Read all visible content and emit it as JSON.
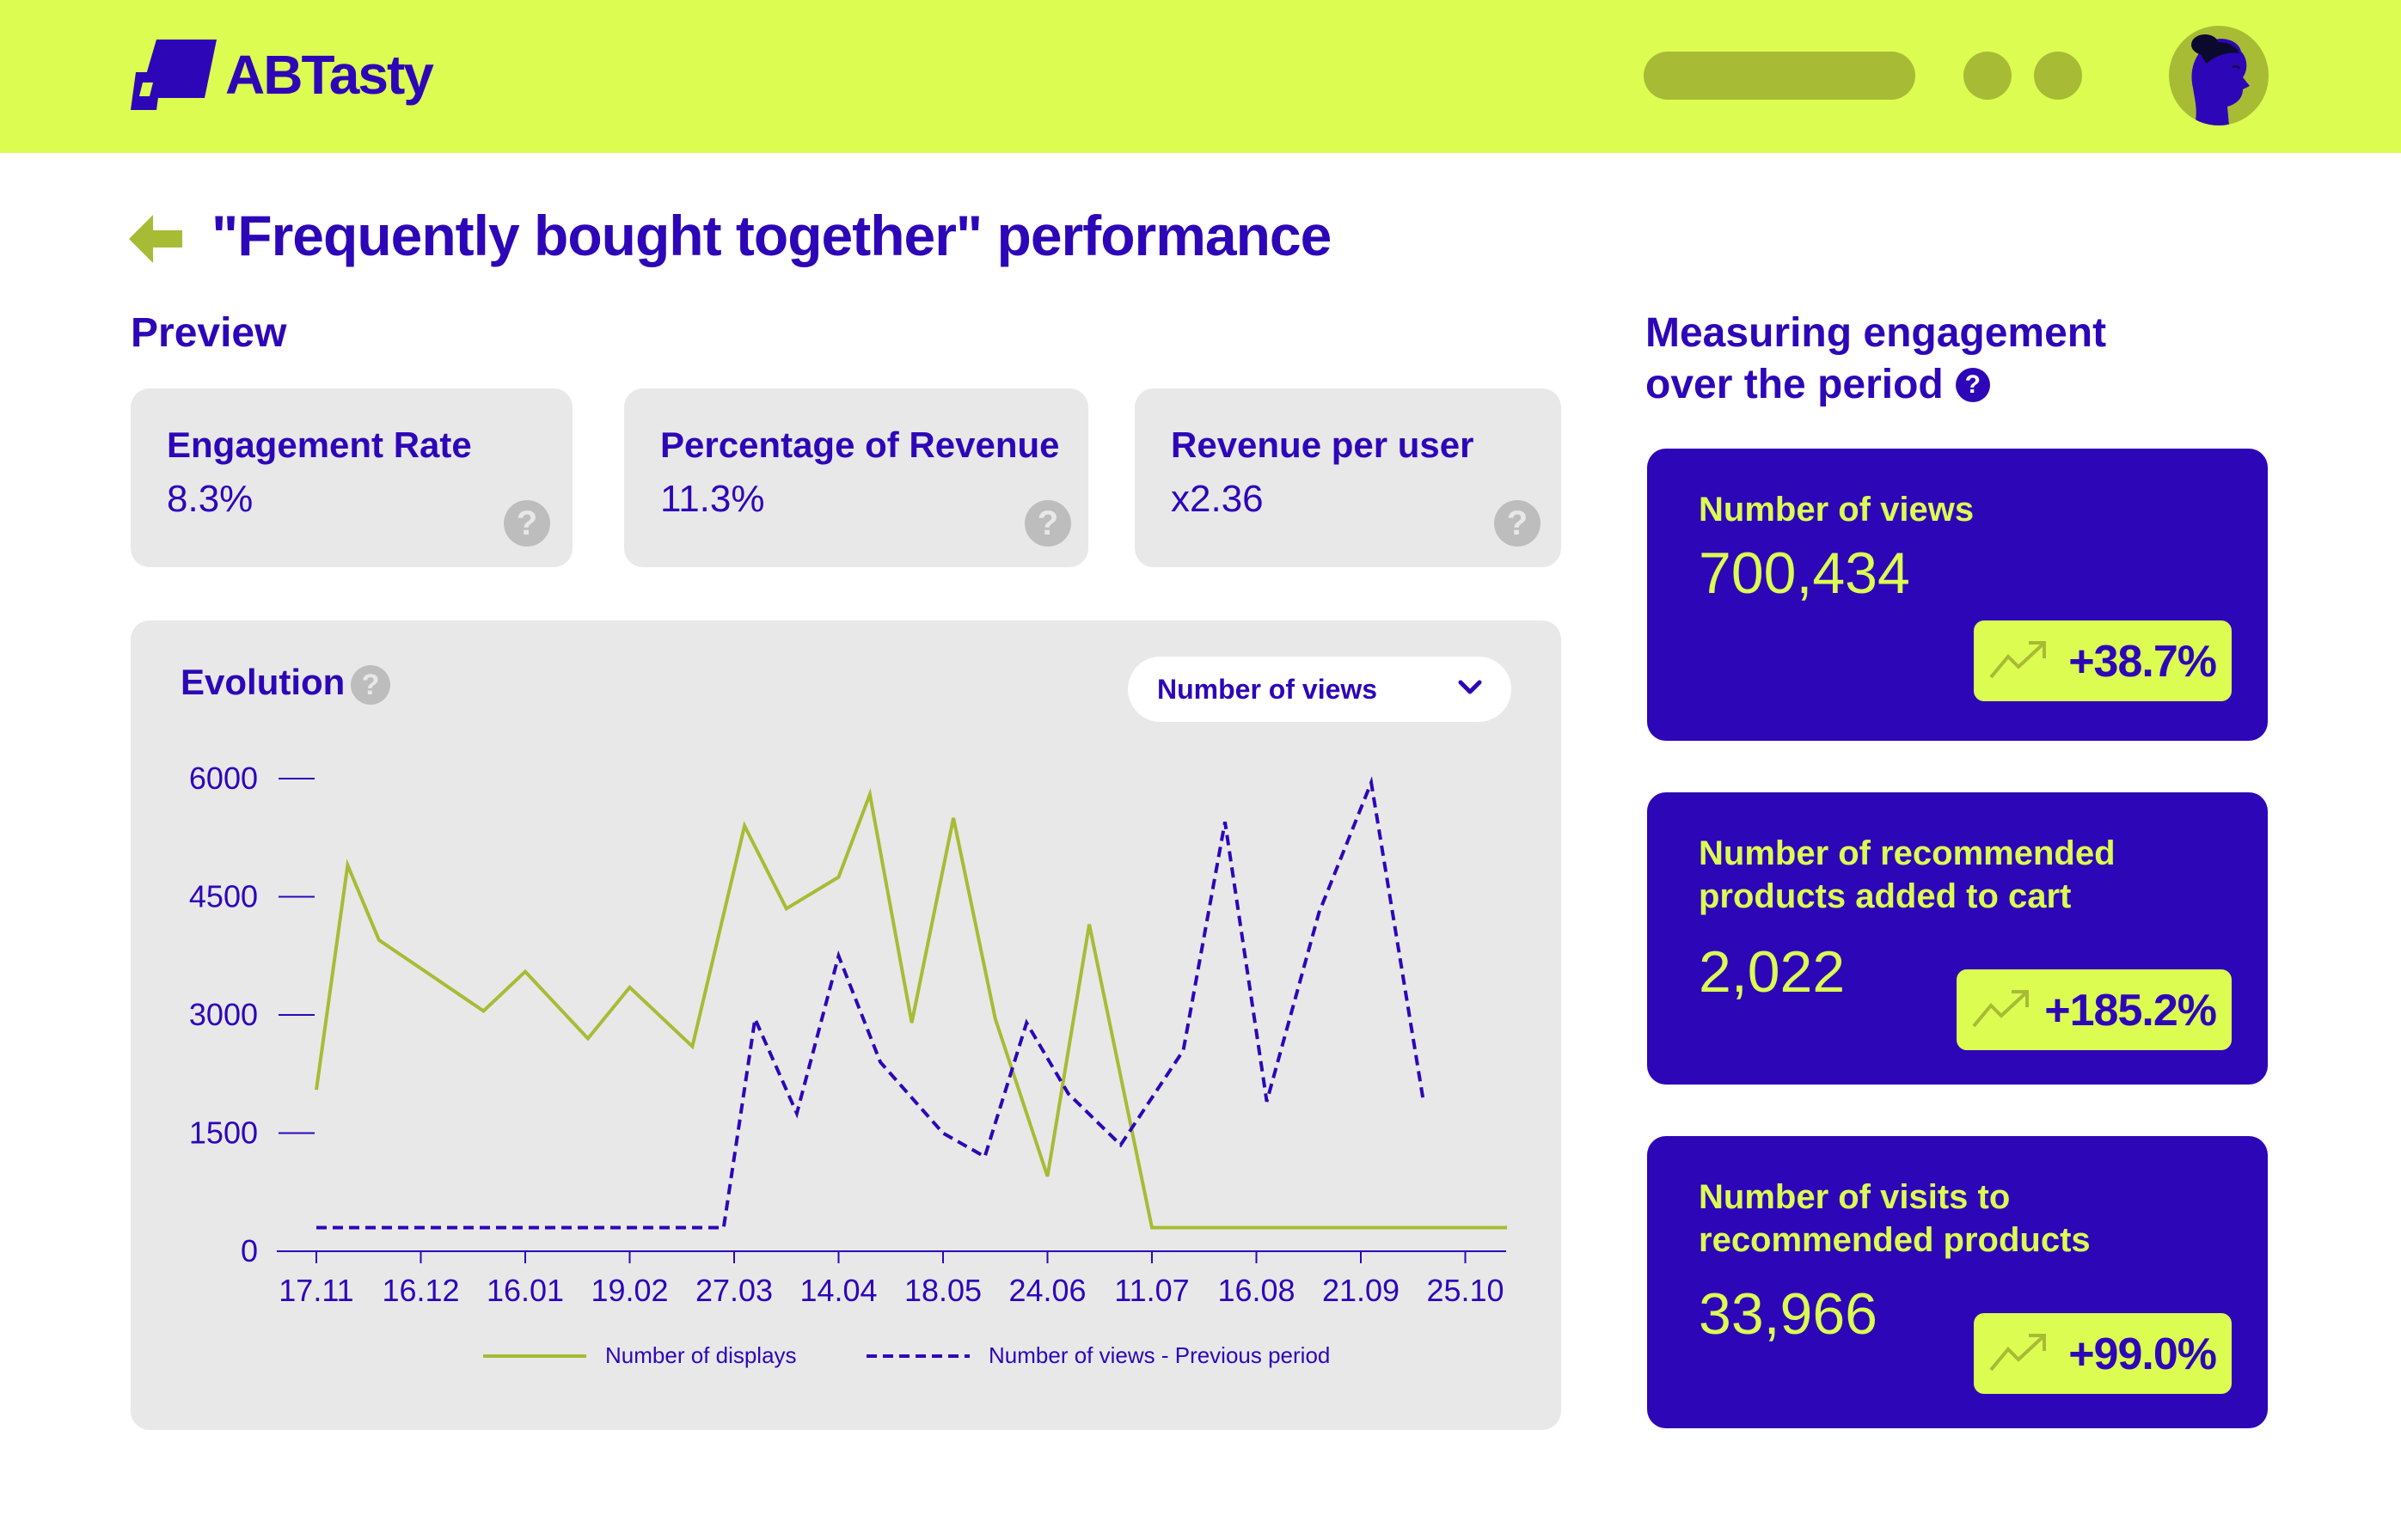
{
  "header": {
    "brand": "ABTasty",
    "colors": {
      "background": "#dcfc52",
      "accent": "#2d06b8",
      "muted": "#a8bb35"
    },
    "icons": [
      "abtasty-logo-icon",
      "user-avatar-icon"
    ]
  },
  "page": {
    "title": "\"Frequently bought together\" performance",
    "back_icon": "arrow-left-icon"
  },
  "preview": {
    "title": "Preview",
    "kpis": [
      {
        "label": "Engagement Rate",
        "value": "8.3%"
      },
      {
        "label": "Percentage of Revenue",
        "value": "11.3%"
      },
      {
        "label": "Revenue per user",
        "value": "x2.36"
      }
    ],
    "help_icon": "?"
  },
  "evolution": {
    "title": "Evolution",
    "help_icon": "?",
    "metric_select": {
      "selected": "Number of views",
      "icon": "chevron-down-icon"
    }
  },
  "chart_data": {
    "type": "line",
    "title": "",
    "xlabel": "",
    "ylabel": "",
    "ylim": [
      0,
      6000
    ],
    "yticks": [
      0,
      1500,
      3000,
      4500,
      6000
    ],
    "xtick_labels": [
      "17.11",
      "16.12",
      "16.01",
      "19.02",
      "27.03",
      "14.04",
      "18.05",
      "24.06",
      "11.07",
      "16.08",
      "21.09",
      "25.10"
    ],
    "legend_position": "bottom",
    "grid": false,
    "series": [
      {
        "name": "Number of displays",
        "color": "#a8bb35",
        "style": "solid",
        "points": [
          [
            0.0,
            2050
          ],
          [
            0.3,
            4900
          ],
          [
            0.6,
            3950
          ],
          [
            1.6,
            3050
          ],
          [
            2.0,
            3550
          ],
          [
            2.6,
            2700
          ],
          [
            3.0,
            3350
          ],
          [
            3.6,
            2600
          ],
          [
            4.1,
            5400
          ],
          [
            4.5,
            4350
          ],
          [
            5.0,
            4750
          ],
          [
            5.3,
            5800
          ],
          [
            5.7,
            2900
          ],
          [
            6.1,
            5500
          ],
          [
            6.5,
            2950
          ],
          [
            7.0,
            950
          ],
          [
            7.4,
            4150
          ],
          [
            8.0,
            300
          ],
          [
            9.0,
            300
          ],
          [
            10.0,
            300
          ],
          [
            11.4,
            300
          ]
        ]
      },
      {
        "name": "Number of views - Previous period",
        "color": "#2d06b8",
        "style": "dashed",
        "points": [
          [
            0.0,
            300
          ],
          [
            1.0,
            300
          ],
          [
            2.0,
            300
          ],
          [
            3.0,
            300
          ],
          [
            3.9,
            300
          ],
          [
            4.2,
            2950
          ],
          [
            4.6,
            1750
          ],
          [
            5.0,
            3750
          ],
          [
            5.4,
            2400
          ],
          [
            6.0,
            1500
          ],
          [
            6.4,
            1200
          ],
          [
            6.8,
            2900
          ],
          [
            7.2,
            2000
          ],
          [
            7.7,
            1350
          ],
          [
            8.3,
            2550
          ],
          [
            8.7,
            5450
          ],
          [
            9.1,
            1900
          ],
          [
            9.6,
            4300
          ],
          [
            10.1,
            5950
          ],
          [
            10.6,
            1900
          ]
        ]
      }
    ]
  },
  "engagement": {
    "title_line1": "Measuring engagement",
    "title_line2": "over the period",
    "help_icon": "?",
    "stats": [
      {
        "label_line1": "Number of views",
        "label_line2": "",
        "value": "700,434",
        "change": "+38.7%",
        "icon": "trend-up-icon"
      },
      {
        "label_line1": "Number of recommended",
        "label_line2": "products added to cart",
        "value": "2,022",
        "change": "+185.2%",
        "icon": "trend-up-icon"
      },
      {
        "label_line1": "Number of visits to",
        "label_line2": "recommended products",
        "value": "33,966",
        "change": "+99.0%",
        "icon": "trend-up-icon"
      }
    ]
  }
}
